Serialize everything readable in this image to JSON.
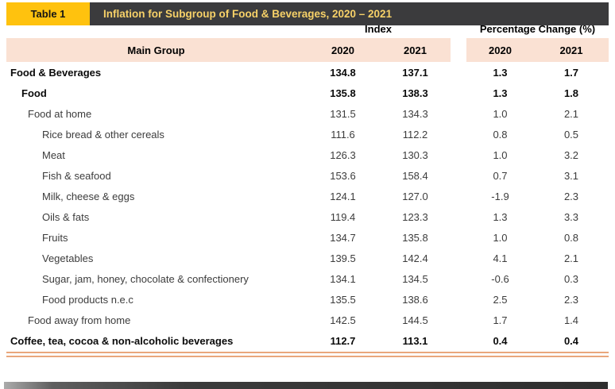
{
  "header": {
    "table_label": "Table 1",
    "title": "Inflation for Subgroup of Food & Beverages, 2020 – 2021"
  },
  "table": {
    "group_headers": {
      "index": "Index",
      "pct": "Percentage Change (%)"
    },
    "main_group_header": "Main Group",
    "index_years": [
      "2020",
      "2021"
    ],
    "pct_years": [
      "2020",
      "2021"
    ],
    "rows": [
      {
        "label": "Food & Beverages",
        "indent": 0,
        "bold": true,
        "index_2020": "134.8",
        "index_2021": "137.1",
        "pct_2020": "1.3",
        "pct_2021": "1.7"
      },
      {
        "label": "Food",
        "indent": 1,
        "bold": true,
        "index_2020": "135.8",
        "index_2021": "138.3",
        "pct_2020": "1.3",
        "pct_2021": "1.8"
      },
      {
        "label": "Food at home",
        "indent": 2,
        "bold": false,
        "index_2020": "131.5",
        "index_2021": "134.3",
        "pct_2020": "1.0",
        "pct_2021": "2.1"
      },
      {
        "label": "Rice bread & other cereals",
        "indent": 3,
        "bold": false,
        "index_2020": "111.6",
        "index_2021": "112.2",
        "pct_2020": "0.8",
        "pct_2021": "0.5"
      },
      {
        "label": "Meat",
        "indent": 3,
        "bold": false,
        "index_2020": "126.3",
        "index_2021": "130.3",
        "pct_2020": "1.0",
        "pct_2021": "3.2"
      },
      {
        "label": "Fish & seafood",
        "indent": 3,
        "bold": false,
        "index_2020": "153.6",
        "index_2021": "158.4",
        "pct_2020": "0.7",
        "pct_2021": "3.1"
      },
      {
        "label": "Milk, cheese & eggs",
        "indent": 3,
        "bold": false,
        "index_2020": "124.1",
        "index_2021": "127.0",
        "pct_2020": "-1.9",
        "pct_2021": "2.3"
      },
      {
        "label": "Oils & fats",
        "indent": 3,
        "bold": false,
        "index_2020": "119.4",
        "index_2021": "123.3",
        "pct_2020": "1.3",
        "pct_2021": "3.3"
      },
      {
        "label": "Fruits",
        "indent": 3,
        "bold": false,
        "index_2020": "134.7",
        "index_2021": "135.8",
        "pct_2020": "1.0",
        "pct_2021": "0.8"
      },
      {
        "label": "Vegetables",
        "indent": 3,
        "bold": false,
        "index_2020": "139.5",
        "index_2021": "142.4",
        "pct_2020": "4.1",
        "pct_2021": "2.1"
      },
      {
        "label": "Sugar, jam, honey, chocolate & confectionery",
        "indent": 3,
        "bold": false,
        "index_2020": "134.1",
        "index_2021": "134.5",
        "pct_2020": "-0.6",
        "pct_2021": "0.3"
      },
      {
        "label": "Food products n.e.c",
        "indent": 3,
        "bold": false,
        "index_2020": "135.5",
        "index_2021": "138.6",
        "pct_2020": "2.5",
        "pct_2021": "2.3"
      },
      {
        "label": "Food away from home",
        "indent": 2,
        "bold": false,
        "index_2020": "142.5",
        "index_2021": "144.5",
        "pct_2020": "1.7",
        "pct_2021": "1.4"
      },
      {
        "label": "Coffee, tea, cocoa & non-alcoholic beverages",
        "indent": 0,
        "bold": true,
        "index_2020": "112.7",
        "index_2021": "113.1",
        "pct_2020": "0.4",
        "pct_2021": "0.4"
      }
    ]
  },
  "colors": {
    "accent_amber": "#FFC20E",
    "bar_dark": "#3B3B3D",
    "title_text": "#F7D168",
    "header_peach": "#FAE1D3",
    "rule_orange": "#E9A77C"
  }
}
